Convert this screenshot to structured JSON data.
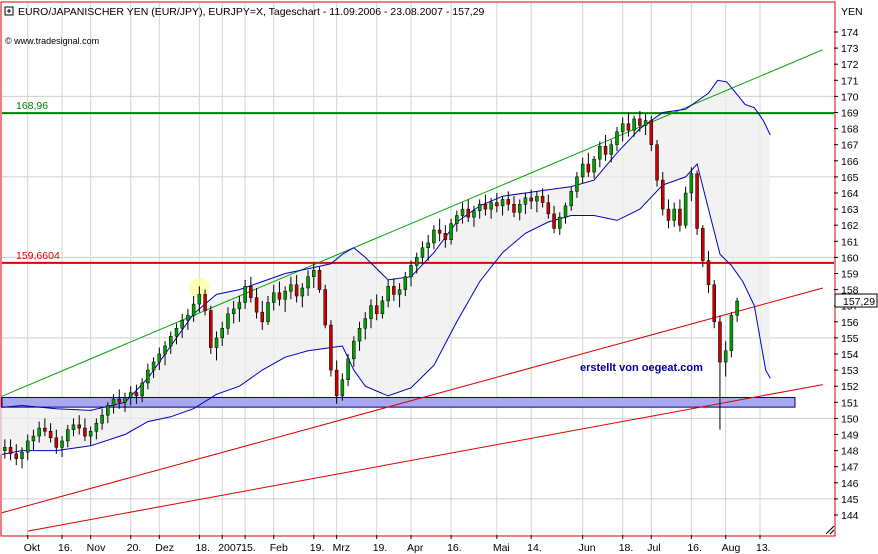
{
  "header": {
    "title": "EURO/JAPANISCHER YEN (EUR/JPY), EURJPY=X, Tageschart - 11.09.2006 - 23.08.2007 - 157,29",
    "source": "© www.tradesignal.com",
    "unit": "YEN",
    "watermark": "erstellt von oegeat.com"
  },
  "chart_data": {
    "type": "candlestick",
    "title": "EURO/JAPANISCHER YEN (EUR/JPY), EURJPY=X, Tageschart - 11.09.2006 - 23.08.2007 - 157,29",
    "ylabel": "YEN",
    "ylim": [
      143,
      175
    ],
    "y_ticks": [
      144,
      145,
      146,
      147,
      148,
      149,
      150,
      151,
      152,
      153,
      154,
      155,
      156,
      157,
      158,
      159,
      160,
      161,
      162,
      163,
      164,
      165,
      166,
      167,
      168,
      169,
      170,
      171,
      172,
      173,
      174
    ],
    "last_price": "157,29",
    "x_labels": [
      "Okt",
      "16.",
      "Nov",
      "20.",
      "Dez",
      "18.",
      "2007",
      "15.",
      "Feb",
      "19.",
      "Mrz",
      "19.",
      "Apr",
      "16.",
      "Mai",
      "14.",
      "Jun",
      "18.",
      "Jul",
      "16.",
      "Aug",
      "13."
    ],
    "x_label_positions": [
      0.5,
      3.5,
      6,
      9.5,
      12,
      15.5,
      17.5,
      19.5,
      22,
      25.5,
      27.5,
      31,
      34,
      37.5,
      41.5,
      44.5,
      49,
      52.5,
      55,
      58.5,
      61.5,
      64.5
    ],
    "horizontal_lines": [
      {
        "label": "168,96",
        "value": 168.96,
        "color": "#008000"
      },
      {
        "label": "159,6604",
        "value": 159.6604,
        "color": "#dd0000"
      }
    ],
    "support_zone": {
      "from": 150.7,
      "to": 151.3,
      "color": "#a8a8f0"
    },
    "trendlines": [
      {
        "color": "#00a000",
        "x": [
          -3,
          70
        ],
        "y": [
          151.0,
          172.9
        ]
      },
      {
        "color": "#dd0000",
        "x": [
          -3,
          70
        ],
        "y": [
          143.9,
          158.1
        ]
      },
      {
        "color": "#dd0000",
        "x": [
          0.5,
          70
        ],
        "y": [
          143.0,
          152.1
        ]
      }
    ],
    "bollinger_upper": [
      [
        -3,
        150.6
      ],
      [
        0,
        150.8
      ],
      [
        3,
        150.6
      ],
      [
        6,
        150.5
      ],
      [
        9,
        151.0
      ],
      [
        11,
        152.5
      ],
      [
        13,
        154.5
      ],
      [
        15,
        156.5
      ],
      [
        17,
        157.7
      ],
      [
        19,
        158.0
      ],
      [
        21,
        158.5
      ],
      [
        23,
        159.0
      ],
      [
        25,
        159.3
      ],
      [
        27,
        159.6
      ],
      [
        28,
        160.2
      ],
      [
        29,
        160.6
      ],
      [
        30,
        160.0
      ],
      [
        32,
        158.6
      ],
      [
        34,
        158.8
      ],
      [
        36,
        160.3
      ],
      [
        38,
        162.2
      ],
      [
        40,
        163.2
      ],
      [
        42,
        163.8
      ],
      [
        44,
        164.0
      ],
      [
        46,
        164.2
      ],
      [
        48,
        164.4
      ],
      [
        50,
        164.8
      ],
      [
        52,
        166.5
      ],
      [
        54,
        168.0
      ],
      [
        56,
        169.0
      ],
      [
        58,
        169.2
      ],
      [
        60,
        170.2
      ],
      [
        60.8,
        171.0
      ],
      [
        61.6,
        170.9
      ],
      [
        62.4,
        170.2
      ],
      [
        63.2,
        169.5
      ],
      [
        64,
        169.3
      ],
      [
        64.8,
        168.5
      ],
      [
        65.4,
        167.6
      ]
    ],
    "bollinger_lower": [
      [
        -3,
        147.6
      ],
      [
        0,
        148.0
      ],
      [
        3,
        148.0
      ],
      [
        6,
        148.3
      ],
      [
        9,
        149.0
      ],
      [
        11,
        149.8
      ],
      [
        13,
        150.1
      ],
      [
        15,
        150.6
      ],
      [
        17,
        151.5
      ],
      [
        19,
        152.0
      ],
      [
        21,
        153.0
      ],
      [
        23,
        153.8
      ],
      [
        25,
        154.2
      ],
      [
        27,
        154.4
      ],
      [
        28,
        154.5
      ],
      [
        29,
        153.0
      ],
      [
        30,
        152.0
      ],
      [
        32,
        151.4
      ],
      [
        34,
        151.9
      ],
      [
        36,
        153.3
      ],
      [
        38,
        156.0
      ],
      [
        40,
        158.5
      ],
      [
        42,
        160.3
      ],
      [
        44,
        161.5
      ],
      [
        46,
        162.2
      ],
      [
        48,
        162.6
      ],
      [
        50,
        162.6
      ],
      [
        52,
        162.3
      ],
      [
        54,
        163.0
      ],
      [
        56,
        164.5
      ],
      [
        58,
        165.0
      ],
      [
        59,
        165.8
      ],
      [
        60,
        163.0
      ],
      [
        61,
        160.2
      ],
      [
        62,
        159.5
      ],
      [
        63,
        158.5
      ],
      [
        64,
        157.0
      ],
      [
        64.5,
        155.0
      ],
      [
        65,
        153.0
      ],
      [
        65.4,
        152.5
      ]
    ],
    "candles": [
      [
        -3,
        148.3,
        148.9,
        147.6,
        148.1
      ],
      [
        -2.5,
        148.1,
        148.8,
        147.7,
        148.4
      ],
      [
        -2,
        148.4,
        149.0,
        147.8,
        148.0
      ],
      [
        -1.5,
        148.0,
        148.7,
        147.5,
        148.2
      ],
      [
        -1,
        148.2,
        148.7,
        147.4,
        147.8
      ],
      [
        -0.5,
        147.8,
        148.4,
        147.1,
        147.5
      ],
      [
        0,
        147.5,
        148.2,
        146.9,
        147.9
      ],
      [
        0.5,
        147.9,
        149.0,
        147.4,
        148.6
      ],
      [
        1,
        148.6,
        149.3,
        148.0,
        148.9
      ],
      [
        1.5,
        148.9,
        149.8,
        148.5,
        149.4
      ],
      [
        2,
        149.4,
        150.0,
        148.9,
        149.2
      ],
      [
        2.5,
        149.2,
        149.7,
        148.5,
        148.8
      ],
      [
        3,
        148.8,
        149.3,
        147.8,
        148.2
      ],
      [
        3.5,
        148.2,
        148.9,
        147.6,
        148.6
      ],
      [
        4,
        148.6,
        149.6,
        148.2,
        149.3
      ],
      [
        4.5,
        149.3,
        150.0,
        148.9,
        149.6
      ],
      [
        5,
        149.6,
        150.2,
        149.0,
        149.4
      ],
      [
        5.5,
        149.4,
        150.0,
        148.6,
        148.9
      ],
      [
        6,
        148.9,
        149.5,
        148.3,
        149.2
      ],
      [
        6.5,
        149.2,
        150.0,
        148.7,
        149.7
      ],
      [
        7,
        149.7,
        150.6,
        149.3,
        150.2
      ],
      [
        7.5,
        150.2,
        151.0,
        149.7,
        150.8
      ],
      [
        8,
        150.8,
        151.5,
        150.3,
        151.2
      ],
      [
        8.5,
        151.2,
        151.8,
        150.6,
        151.0
      ],
      [
        9,
        151.0,
        151.6,
        150.4,
        151.3
      ],
      [
        9.5,
        151.3,
        152.0,
        150.8,
        151.6
      ],
      [
        10,
        151.6,
        152.1,
        150.9,
        151.4
      ],
      [
        10.5,
        151.4,
        152.5,
        151.0,
        152.2
      ],
      [
        11,
        152.2,
        153.4,
        151.8,
        153.0
      ],
      [
        11.5,
        153.0,
        153.8,
        152.5,
        153.5
      ],
      [
        12,
        153.5,
        154.4,
        153.0,
        154.0
      ],
      [
        12.5,
        154.0,
        154.8,
        153.3,
        154.5
      ],
      [
        13,
        154.5,
        155.4,
        154.0,
        155.1
      ],
      [
        13.5,
        155.1,
        155.9,
        154.6,
        155.6
      ],
      [
        14,
        155.6,
        156.5,
        155.0,
        156.1
      ],
      [
        14.5,
        156.1,
        156.8,
        155.5,
        156.4
      ],
      [
        15,
        156.4,
        157.6,
        156.0,
        157.1
      ],
      [
        15.5,
        157.1,
        158.2,
        156.6,
        157.7
      ],
      [
        16,
        157.7,
        158.0,
        156.4,
        156.7
      ],
      [
        16.5,
        156.7,
        157.0,
        154.0,
        154.4
      ],
      [
        17,
        154.4,
        155.4,
        153.6,
        155.0
      ],
      [
        17.5,
        155.0,
        156.0,
        154.5,
        155.6
      ],
      [
        18,
        155.6,
        156.9,
        155.2,
        156.5
      ],
      [
        18.5,
        156.5,
        157.3,
        155.9,
        156.8
      ],
      [
        19,
        156.8,
        157.6,
        156.0,
        157.2
      ],
      [
        19.5,
        157.2,
        158.6,
        156.8,
        158.2
      ],
      [
        20,
        158.2,
        158.8,
        157.2,
        157.5
      ],
      [
        20.5,
        157.5,
        158.1,
        156.2,
        156.6
      ],
      [
        21,
        156.6,
        157.3,
        155.5,
        156.0
      ],
      [
        21.5,
        156.0,
        157.6,
        155.8,
        157.2
      ],
      [
        22,
        157.2,
        158.3,
        156.7,
        157.8
      ],
      [
        22.5,
        157.8,
        158.5,
        157.0,
        157.4
      ],
      [
        23,
        157.4,
        158.2,
        156.6,
        157.9
      ],
      [
        23.5,
        157.9,
        158.8,
        157.4,
        158.3
      ],
      [
        24,
        158.3,
        158.9,
        157.2,
        157.6
      ],
      [
        24.5,
        157.6,
        158.4,
        156.9,
        158.1
      ],
      [
        25,
        158.1,
        159.2,
        157.6,
        158.8
      ],
      [
        25.5,
        158.8,
        159.6,
        158.1,
        159.2
      ],
      [
        26,
        159.2,
        159.4,
        157.8,
        158.0
      ],
      [
        26.5,
        158.0,
        158.3,
        155.6,
        155.8
      ],
      [
        27,
        155.8,
        156.1,
        152.6,
        153.0
      ],
      [
        27.5,
        153.0,
        153.6,
        150.9,
        151.4
      ],
      [
        28,
        151.4,
        152.8,
        151.1,
        152.4
      ],
      [
        28.5,
        152.4,
        154.0,
        152.0,
        153.7
      ],
      [
        29,
        153.7,
        155.1,
        153.2,
        154.8
      ],
      [
        29.5,
        154.8,
        156.0,
        154.2,
        155.6
      ],
      [
        30,
        155.6,
        156.6,
        154.9,
        156.2
      ],
      [
        30.5,
        156.2,
        157.4,
        155.6,
        157.0
      ],
      [
        31,
        157.0,
        157.7,
        156.1,
        156.5
      ],
      [
        31.5,
        156.5,
        157.6,
        156.2,
        157.3
      ],
      [
        32,
        157.3,
        158.6,
        156.9,
        158.2
      ],
      [
        32.5,
        158.2,
        158.7,
        157.3,
        157.7
      ],
      [
        33,
        157.7,
        158.4,
        156.9,
        158.0
      ],
      [
        33.5,
        158.0,
        159.1,
        157.6,
        158.8
      ],
      [
        34,
        158.8,
        159.8,
        158.2,
        159.5
      ],
      [
        34.5,
        159.5,
        160.3,
        159.0,
        160.0
      ],
      [
        35,
        160.0,
        161.0,
        159.6,
        160.6
      ],
      [
        35.5,
        160.6,
        161.4,
        159.8,
        160.9
      ],
      [
        36,
        160.9,
        162.0,
        160.5,
        161.7
      ],
      [
        36.5,
        161.7,
        162.4,
        161.0,
        161.5
      ],
      [
        37,
        161.5,
        162.0,
        160.6,
        161.1
      ],
      [
        37.5,
        161.1,
        162.4,
        160.8,
        162.1
      ],
      [
        38,
        162.1,
        162.9,
        161.6,
        162.6
      ],
      [
        38.5,
        162.6,
        163.4,
        162.1,
        163.0
      ],
      [
        39,
        163.0,
        163.6,
        162.2,
        162.5
      ],
      [
        39.5,
        162.5,
        163.2,
        161.9,
        162.9
      ],
      [
        40,
        162.9,
        163.6,
        162.4,
        163.3
      ],
      [
        40.5,
        163.3,
        163.9,
        162.6,
        163.0
      ],
      [
        41,
        163.0,
        163.7,
        162.4,
        163.4
      ],
      [
        41.5,
        163.4,
        164.0,
        162.8,
        163.2
      ],
      [
        42,
        163.2,
        163.8,
        162.6,
        163.6
      ],
      [
        42.5,
        163.6,
        164.1,
        162.9,
        163.3
      ],
      [
        43,
        163.3,
        163.8,
        162.5,
        162.8
      ],
      [
        43.5,
        162.8,
        163.6,
        162.3,
        163.3
      ],
      [
        44,
        163.3,
        164.0,
        162.7,
        163.7
      ],
      [
        44.5,
        163.7,
        164.2,
        163.0,
        163.5
      ],
      [
        45,
        163.5,
        164.1,
        162.8,
        163.8
      ],
      [
        45.5,
        163.8,
        164.3,
        163.1,
        163.4
      ],
      [
        46,
        163.4,
        163.9,
        162.4,
        162.7
      ],
      [
        46.5,
        162.7,
        163.2,
        161.5,
        161.8
      ],
      [
        47,
        161.8,
        162.8,
        161.4,
        162.5
      ],
      [
        47.5,
        162.5,
        163.4,
        162.1,
        163.2
      ],
      [
        48,
        163.2,
        164.4,
        162.9,
        164.1
      ],
      [
        48.5,
        164.1,
        165.3,
        163.7,
        165.0
      ],
      [
        49,
        165.0,
        166.2,
        164.6,
        165.8
      ],
      [
        49.5,
        165.8,
        166.5,
        165.0,
        165.3
      ],
      [
        50,
        165.3,
        166.3,
        164.9,
        166.1
      ],
      [
        50.5,
        166.1,
        167.2,
        165.6,
        166.9
      ],
      [
        51,
        166.9,
        167.6,
        166.0,
        166.4
      ],
      [
        51.5,
        166.4,
        167.3,
        165.9,
        167.0
      ],
      [
        52,
        167.0,
        168.1,
        166.6,
        167.8
      ],
      [
        52.5,
        167.8,
        168.7,
        167.2,
        168.3
      ],
      [
        53,
        168.3,
        169.0,
        167.5,
        167.9
      ],
      [
        53.5,
        167.9,
        168.8,
        167.5,
        168.6
      ],
      [
        54,
        168.6,
        169.1,
        167.8,
        168.2
      ],
      [
        54.5,
        168.2,
        168.9,
        167.6,
        168.5
      ],
      [
        55,
        168.5,
        168.8,
        166.6,
        167.0
      ],
      [
        55.5,
        167.0,
        167.3,
        164.4,
        164.8
      ],
      [
        56,
        164.8,
        165.3,
        162.6,
        163.0
      ],
      [
        56.5,
        163.0,
        163.6,
        161.8,
        162.3
      ],
      [
        57,
        162.3,
        163.4,
        161.9,
        163.0
      ],
      [
        57.5,
        163.0,
        163.6,
        161.6,
        162.0
      ],
      [
        58,
        162.0,
        164.4,
        161.8,
        164.0
      ],
      [
        58.5,
        164.0,
        165.6,
        163.5,
        165.2
      ],
      [
        59,
        165.2,
        165.4,
        161.4,
        161.8
      ],
      [
        59.5,
        161.8,
        162.0,
        159.4,
        159.8
      ],
      [
        60,
        159.8,
        160.4,
        157.8,
        158.3
      ],
      [
        60.5,
        158.3,
        158.6,
        155.6,
        156.0
      ],
      [
        61,
        156.0,
        156.4,
        149.3,
        153.5
      ],
      [
        61.5,
        153.5,
        154.8,
        152.6,
        154.2
      ],
      [
        62,
        154.2,
        156.6,
        153.8,
        156.4
      ],
      [
        62.5,
        156.4,
        157.5,
        156.0,
        157.29
      ]
    ]
  }
}
